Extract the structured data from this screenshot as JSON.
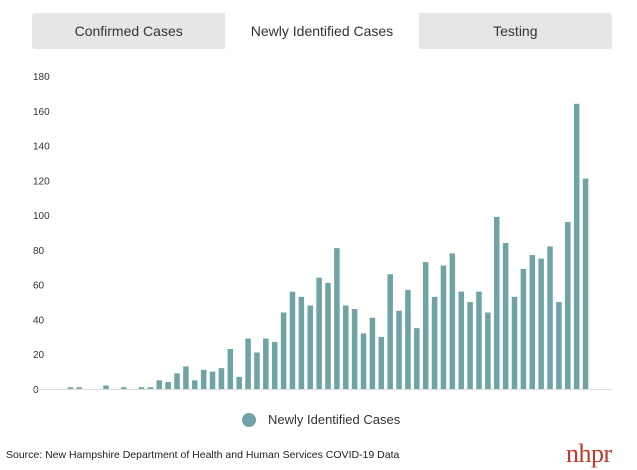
{
  "tabs": [
    {
      "label": "Confirmed Cases",
      "active": false
    },
    {
      "label": "Newly Identified Cases",
      "active": true
    },
    {
      "label": "Testing",
      "active": false
    }
  ],
  "legend": {
    "label": "Newly Identified Cases"
  },
  "source": "Source: New Hampshire Department of Health and Human Services COVID-19 Data",
  "logo": "nhpr",
  "colors": {
    "bar": "#6fa3a5",
    "active_tab": "#ffffff",
    "inactive_tab": "#e6e6e6",
    "logo": "#c0392b"
  },
  "chart_data": {
    "type": "bar",
    "title": "",
    "xlabel": "",
    "ylabel": "",
    "ylim": [
      0,
      180
    ],
    "yticks": [
      0,
      20,
      40,
      60,
      80,
      100,
      120,
      140,
      160,
      180
    ],
    "series": [
      {
        "name": "Newly Identified Cases",
        "values": [
          1,
          1,
          0,
          0,
          2,
          0,
          1,
          0,
          1,
          1,
          5,
          4,
          9,
          13,
          5,
          11,
          10,
          12,
          23,
          7,
          29,
          21,
          29,
          27,
          44,
          56,
          53,
          48,
          64,
          61,
          81,
          48,
          46,
          32,
          41,
          30,
          66,
          45,
          57,
          35,
          73,
          53,
          71,
          78,
          56,
          50,
          56,
          44,
          99,
          84,
          53,
          69,
          77,
          75,
          82,
          50,
          96,
          164,
          121
        ]
      }
    ]
  }
}
